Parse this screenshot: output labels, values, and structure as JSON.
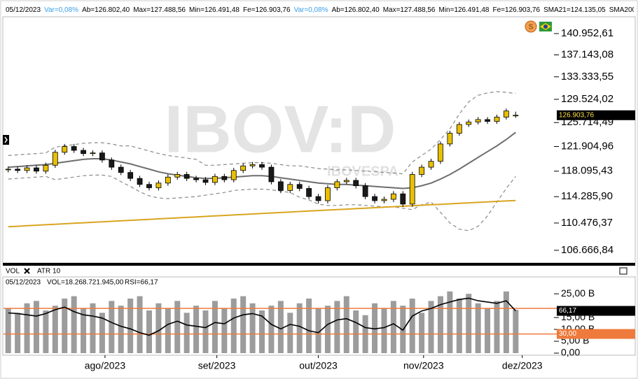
{
  "header": {
    "items": [
      {
        "text": "05/12/2023",
        "color": "#000000"
      },
      {
        "text": "Var=0,08%",
        "color": "#3aa0e8"
      },
      {
        "text": "Ab=126.802,40",
        "color": "#000000"
      },
      {
        "text": "Max=127.488,56",
        "color": "#000000"
      },
      {
        "text": "Min=126.491,48",
        "color": "#000000"
      },
      {
        "text": "Fe=126.903,76",
        "color": "#000000"
      },
      {
        "text": "Var=0,08%",
        "color": "#3aa0e8"
      },
      {
        "text": "Ab=126.802,40",
        "color": "#000000"
      },
      {
        "text": "Max=127.488,56",
        "color": "#000000"
      },
      {
        "text": "Min=126.491,48",
        "color": "#000000"
      },
      {
        "text": "Fe=126.903,76",
        "color": "#000000"
      },
      {
        "text": "SMA21=124.135,05",
        "color": "#000000"
      },
      {
        "text": "SMA200",
        "color": "#000000"
      }
    ]
  },
  "volume_header": {
    "tabs": [
      "VOL",
      "ATR 10"
    ],
    "date": "05/12/2023",
    "vol": "VOL=18.268.721.945,00",
    "rsi": "RSI=66,17"
  },
  "chart_data": [
    {
      "type": "candlestick",
      "watermark": "IBOV:D",
      "watermark_sub": "IBOVESPA",
      "log_scale": true,
      "categories": [
        null,
        null,
        null,
        null,
        null,
        null,
        null,
        null,
        null,
        null,
        null,
        null,
        null,
        null,
        null,
        null,
        null,
        null,
        null,
        null,
        null,
        null,
        null,
        null,
        null,
        null,
        null,
        null,
        null,
        null,
        null,
        null,
        null,
        null,
        null,
        null,
        null,
        null,
        null,
        null,
        null,
        null,
        null,
        null,
        null,
        null,
        null,
        null,
        null,
        null,
        null,
        null,
        null,
        null,
        null
      ],
      "xlim": [
        -0.5,
        58
      ],
      "ylim": [
        105330,
        143900
      ],
      "yticks": [
        {
          "value": 140952.61,
          "label": "140.952,61"
        },
        {
          "value": 137143.08,
          "label": "137.143,08"
        },
        {
          "value": 133333.55,
          "label": "133.333,55"
        },
        {
          "value": 129524.02,
          "label": "129.524,02"
        },
        {
          "value": 125714.49,
          "label": "125.714,49"
        },
        {
          "value": 121904.96,
          "label": "121.904,96"
        },
        {
          "value": 118095.43,
          "label": "118.095,43"
        },
        {
          "value": 114285.9,
          "label": "114.285,90"
        },
        {
          "value": 110476.37,
          "label": "110.476,37"
        },
        {
          "value": 106666.84,
          "label": "106.666,84"
        }
      ],
      "up_color": "#e8c000",
      "down_color": "#1a1a1a",
      "open": [
        118300,
        118400,
        118200,
        118600,
        118100,
        119000,
        121000,
        121900,
        121300,
        120800,
        120900,
        119800,
        118700,
        117900,
        117000,
        116100,
        115600,
        116300,
        117200,
        117600,
        117000,
        116800,
        116400,
        117300,
        116800,
        118200,
        118900,
        119100,
        118700,
        116500,
        115200,
        116100,
        115500,
        114300,
        113700,
        115600,
        116500,
        116700,
        115900,
        114300,
        113700,
        113900,
        114700,
        113200,
        117600,
        118700,
        119600,
        122300,
        124000,
        125400,
        125800,
        126200,
        125900,
        126600,
        126802.4
      ],
      "high": [
        118800,
        118800,
        119000,
        119000,
        119400,
        121400,
        122300,
        122300,
        121700,
        121300,
        121300,
        120200,
        119100,
        118300,
        117400,
        116500,
        116700,
        117600,
        118000,
        118000,
        117400,
        117200,
        117700,
        117700,
        118600,
        119300,
        119500,
        119500,
        119100,
        116900,
        116500,
        116500,
        115900,
        114700,
        116000,
        116900,
        117100,
        117100,
        116300,
        114700,
        114300,
        115100,
        115100,
        118000,
        119100,
        120000,
        122700,
        124400,
        125800,
        126200,
        126600,
        126600,
        127000,
        128000,
        127488.56
      ],
      "low": [
        117900,
        117800,
        117800,
        117700,
        117700,
        118600,
        120600,
        120900,
        120400,
        120400,
        119400,
        118300,
        117500,
        116600,
        115700,
        115200,
        115200,
        115900,
        116800,
        116600,
        116400,
        116000,
        116000,
        116400,
        116400,
        117800,
        118500,
        118300,
        116100,
        114800,
        114800,
        115100,
        113900,
        113300,
        113300,
        115200,
        116100,
        115500,
        113900,
        113300,
        113300,
        113500,
        112800,
        112800,
        117200,
        118300,
        119200,
        121900,
        123600,
        125000,
        125400,
        125500,
        125500,
        126200,
        126491.48
      ],
      "close": [
        118400,
        118200,
        118600,
        118100,
        119000,
        121000,
        121900,
        121300,
        120800,
        120900,
        119800,
        118700,
        117900,
        117000,
        116100,
        115600,
        116300,
        117200,
        117600,
        117000,
        116800,
        116400,
        117300,
        116800,
        118200,
        118900,
        119100,
        118700,
        116500,
        115200,
        116100,
        115500,
        114300,
        113700,
        115600,
        116500,
        116700,
        115900,
        114300,
        113700,
        113900,
        114700,
        113200,
        117600,
        118700,
        119600,
        122300,
        124000,
        125400,
        125800,
        126200,
        125900,
        126600,
        127600,
        126903.76
      ],
      "last_label": "126.903,76",
      "bands": {
        "color": "#8a8a8a",
        "upper": [
          120500,
          120600,
          120700,
          120800,
          120900,
          121800,
          122000,
          122200,
          122400,
          122500,
          122500,
          122300,
          122000,
          122000,
          121600,
          121200,
          120800,
          120500,
          120300,
          120100,
          119900,
          119000,
          119000,
          119100,
          119200,
          119300,
          119400,
          119400,
          119300,
          119100,
          118900,
          118900,
          118700,
          118500,
          118400,
          118300,
          118300,
          118200,
          118100,
          118000,
          117900,
          117800,
          117700,
          119500,
          120500,
          121500,
          123000,
          124700,
          127100,
          129100,
          130200,
          130600,
          130800,
          130700,
          130500
        ],
        "lower": [
          116900,
          117000,
          117100,
          117200,
          117300,
          116800,
          117000,
          117200,
          117400,
          117500,
          117500,
          117300,
          116500,
          115800,
          115000,
          114400,
          114100,
          114000,
          114100,
          114200,
          114300,
          114500,
          114700,
          114900,
          115200,
          115300,
          115400,
          115400,
          115300,
          115100,
          114900,
          114200,
          113800,
          113200,
          113000,
          113000,
          113100,
          113100,
          113000,
          112900,
          112800,
          112800,
          112600,
          112400,
          113100,
          113500,
          112000,
          110500,
          109600,
          109400,
          110000,
          111500,
          113500,
          115500,
          117300
        ]
      },
      "series": [
        {
          "name": "SMA21",
          "color": "#6e6e6e",
          "values": [
            118700,
            118800,
            118900,
            119000,
            119100,
            119300,
            119500,
            119700,
            119900,
            120000,
            120000,
            119800,
            119500,
            119200,
            118800,
            118400,
            118000,
            117700,
            117500,
            117300,
            117100,
            117000,
            117000,
            117100,
            117200,
            117300,
            117400,
            117400,
            117300,
            117100,
            116900,
            116700,
            116500,
            116300,
            116200,
            116100,
            116100,
            116000,
            115900,
            115800,
            115700,
            115600,
            115500,
            115600,
            115900,
            116300,
            116900,
            117600,
            118400,
            119300,
            120200,
            121100,
            122000,
            123000,
            124135.05
          ]
        },
        {
          "name": "SMA200",
          "color": "#d9a520",
          "values": [
            109950,
            110020,
            110090,
            110160,
            110230,
            110300,
            110370,
            110440,
            110510,
            110580,
            110650,
            110720,
            110790,
            110860,
            110930,
            111000,
            111070,
            111140,
            111210,
            111280,
            111350,
            111420,
            111490,
            111560,
            111630,
            111700,
            111770,
            111840,
            111910,
            111980,
            112050,
            112120,
            112190,
            112260,
            112330,
            112400,
            112470,
            112540,
            112610,
            112680,
            112750,
            112820,
            112890,
            112960,
            113030,
            113100,
            113170,
            113240,
            113310,
            113380,
            113450,
            113520,
            113590,
            113660,
            113730
          ]
        }
      ]
    },
    {
      "type": "bar",
      "color": "#9c9c9c",
      "categories": [
        null,
        null,
        null,
        null,
        null,
        null,
        null,
        null,
        null,
        null,
        null,
        null,
        null,
        null,
        null,
        null,
        null,
        null,
        null,
        null,
        null,
        null,
        null,
        null,
        null,
        null,
        null,
        null,
        null,
        null,
        null,
        null,
        null,
        null,
        null,
        null,
        null,
        null,
        null,
        null,
        null,
        null,
        null,
        null,
        null,
        null,
        null,
        null,
        null,
        null,
        null,
        null,
        null,
        null,
        null
      ],
      "values": [
        19,
        17,
        21,
        22,
        18,
        20,
        23,
        24,
        19,
        21,
        17,
        22,
        20,
        23,
        24,
        18,
        21,
        19,
        22,
        17,
        20,
        18,
        22,
        19,
        23,
        24,
        21,
        18,
        20,
        22,
        17,
        21,
        23,
        19,
        20,
        22,
        24,
        18,
        16,
        21,
        19,
        22,
        20,
        23,
        17,
        22,
        24,
        26,
        23,
        25,
        21,
        19,
        22,
        26,
        18.27
      ],
      "xlim": [
        -0.5,
        58
      ],
      "ylim": [
        0,
        28
      ],
      "y2lim": [
        0,
        104
      ],
      "yticks": [
        {
          "value": 0,
          "label": "0,00"
        },
        {
          "value": 5,
          "label": "5,00 B"
        },
        {
          "value": 10,
          "label": "10,00 B"
        },
        {
          "value": 15,
          "label": "15,00 B"
        },
        {
          "value": 25,
          "label": "25,00 B"
        }
      ],
      "xticks": [
        {
          "value": 10.3,
          "label": "ago/2023"
        },
        {
          "value": 22.2,
          "label": "set/2023"
        },
        {
          "value": 33,
          "label": "out/2023"
        },
        {
          "value": 44.2,
          "label": "nov/2023"
        },
        {
          "value": 54.7,
          "label": "dez/2023"
        }
      ],
      "levels": [
        70,
        {
          "value": 30,
          "label": "30,00"
        }
      ],
      "level_color": "#ee7a3c",
      "series": [
        {
          "name": "RSI",
          "axis": "y2",
          "color": "#000000",
          "last_label": "66,17",
          "values": [
            63,
            62,
            60,
            58,
            62,
            68,
            72,
            65,
            60,
            58,
            55,
            48,
            42,
            38,
            32,
            28,
            35,
            45,
            50,
            44,
            42,
            40,
            48,
            46,
            55,
            60,
            62,
            58,
            45,
            38,
            45,
            42,
            35,
            32,
            45,
            52,
            54,
            48,
            40,
            38,
            40,
            46,
            36,
            58,
            66,
            70,
            76,
            80,
            84,
            86,
            82,
            80,
            78,
            82,
            66.17
          ]
        }
      ]
    }
  ]
}
